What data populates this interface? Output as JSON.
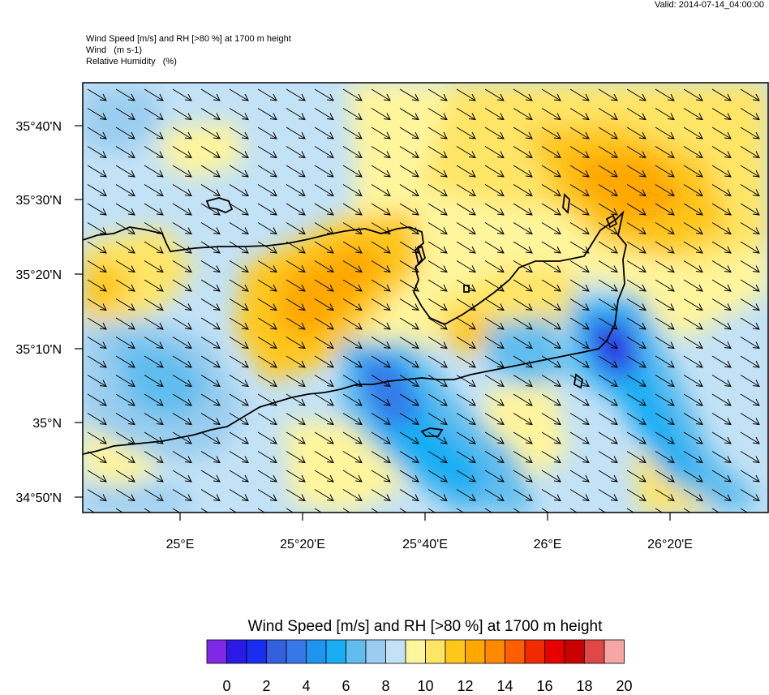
{
  "valid": "Valid: 2014-07-14_04:00:00",
  "header": {
    "line1": "Wind Speed [m/s] and RH [>80 %] at 1700 m height",
    "line2": "Wind   (m s-1)",
    "line3": "Relative Humidity   (%)"
  },
  "axes": {
    "lat_labels": [
      "35°40'N",
      "35°30'N",
      "35°20'N",
      "35°10'N",
      "35°N",
      "34°50'N"
    ],
    "lon_labels": [
      "25°E",
      "25°20'E",
      "25°40'E",
      "26°E",
      "26°20'E"
    ]
  },
  "colorbar": {
    "title": "Wind Speed [m/s] and RH [>80 %] at 1700 m height",
    "labels": [
      "0",
      "2",
      "4",
      "6",
      "8",
      "10",
      "12",
      "14",
      "16",
      "18",
      "20"
    ],
    "colors": [
      "#7f28e6",
      "#2b1ae6",
      "#1a2ef2",
      "#3460e0",
      "#3678e8",
      "#1f95f0",
      "#18aef4",
      "#60bdee",
      "#9acdef",
      "#c3e2f6",
      "#fff59d",
      "#ffe566",
      "#ffc71a",
      "#ffa800",
      "#ff8a00",
      "#ff5f00",
      "#f22a00",
      "#e60000",
      "#c80000",
      "#e04848",
      "#f7a6a6"
    ]
  },
  "colors": {
    "land_border": "#000000",
    "wind_arrow": "#000000"
  }
}
